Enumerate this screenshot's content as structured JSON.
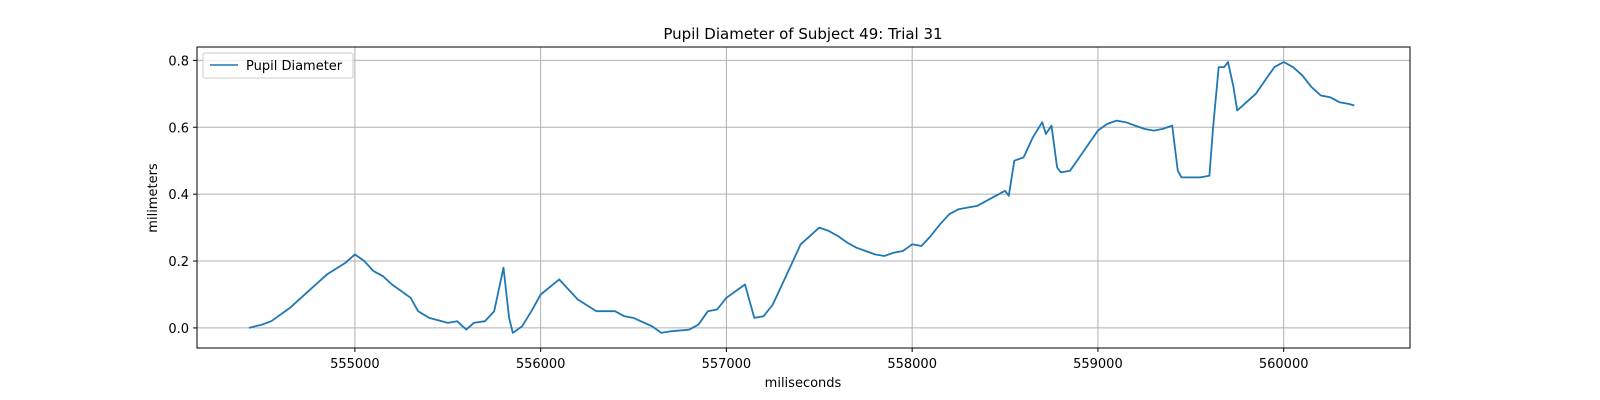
{
  "chart_data": {
    "type": "line",
    "title": "Pupil Diameter of Subject 49: Trial 31",
    "xlabel": "miliseconds",
    "ylabel": "milimeters",
    "xlim": [
      554150,
      560680
    ],
    "ylim": [
      -0.06,
      0.84
    ],
    "xticks": [
      555000,
      556000,
      557000,
      558000,
      559000,
      560000
    ],
    "yticks": [
      0.0,
      0.2,
      0.4,
      0.6,
      0.8
    ],
    "ytick_labels": [
      "0.0",
      "0.2",
      "0.4",
      "0.6",
      "0.8"
    ],
    "grid": true,
    "legend": "upper-left",
    "series": [
      {
        "name": "Pupil Diameter",
        "color": "#1f77b4",
        "x": [
          554430,
          554500,
          554550,
          554650,
          554750,
          554850,
          554950,
          555000,
          555050,
          555100,
          555150,
          555200,
          555250,
          555300,
          555340,
          555400,
          555500,
          555550,
          555600,
          555640,
          555700,
          555750,
          555800,
          555830,
          555850,
          555900,
          555950,
          556000,
          556100,
          556150,
          556200,
          556300,
          556400,
          556450,
          556500,
          556600,
          556650,
          556700,
          556800,
          556850,
          556900,
          556950,
          557000,
          557050,
          557100,
          557150,
          557200,
          557250,
          557300,
          557400,
          557500,
          557550,
          557600,
          557650,
          557700,
          557750,
          557800,
          557850,
          557900,
          557950,
          558000,
          558050,
          558100,
          558150,
          558200,
          558250,
          558300,
          558350,
          558400,
          558450,
          558500,
          558520,
          558550,
          558600,
          558650,
          558700,
          558720,
          558750,
          558780,
          558800,
          558850,
          558900,
          558950,
          559000,
          559050,
          559100,
          559150,
          559200,
          559250,
          559300,
          559350,
          559400,
          559430,
          559450,
          559500,
          559550,
          559600,
          559620,
          559650,
          559680,
          559700,
          559730,
          559750,
          559800,
          559850,
          559900,
          559950,
          560000,
          560050,
          560100,
          560150,
          560200,
          560250,
          560300,
          560350,
          560380
        ],
        "y": [
          0.0,
          0.01,
          0.02,
          0.06,
          0.11,
          0.16,
          0.195,
          0.22,
          0.2,
          0.17,
          0.155,
          0.13,
          0.11,
          0.09,
          0.05,
          0.03,
          0.015,
          0.02,
          -0.005,
          0.015,
          0.02,
          0.05,
          0.18,
          0.03,
          -0.015,
          0.005,
          0.05,
          0.1,
          0.145,
          0.115,
          0.085,
          0.05,
          0.05,
          0.035,
          0.03,
          0.005,
          -0.015,
          -0.01,
          -0.005,
          0.01,
          0.05,
          0.055,
          0.09,
          0.11,
          0.13,
          0.03,
          0.035,
          0.07,
          0.13,
          0.25,
          0.3,
          0.29,
          0.275,
          0.255,
          0.24,
          0.23,
          0.22,
          0.215,
          0.225,
          0.23,
          0.25,
          0.245,
          0.275,
          0.31,
          0.34,
          0.355,
          0.36,
          0.365,
          0.38,
          0.395,
          0.41,
          0.395,
          0.5,
          0.51,
          0.57,
          0.615,
          0.58,
          0.605,
          0.48,
          0.465,
          0.47,
          0.51,
          0.55,
          0.59,
          0.61,
          0.62,
          0.615,
          0.605,
          0.595,
          0.59,
          0.595,
          0.605,
          0.47,
          0.45,
          0.45,
          0.45,
          0.455,
          0.6,
          0.78,
          0.78,
          0.795,
          0.72,
          0.65,
          0.675,
          0.7,
          0.74,
          0.78,
          0.795,
          0.78,
          0.755,
          0.72,
          0.695,
          0.69,
          0.675,
          0.67,
          0.665
        ]
      }
    ]
  }
}
